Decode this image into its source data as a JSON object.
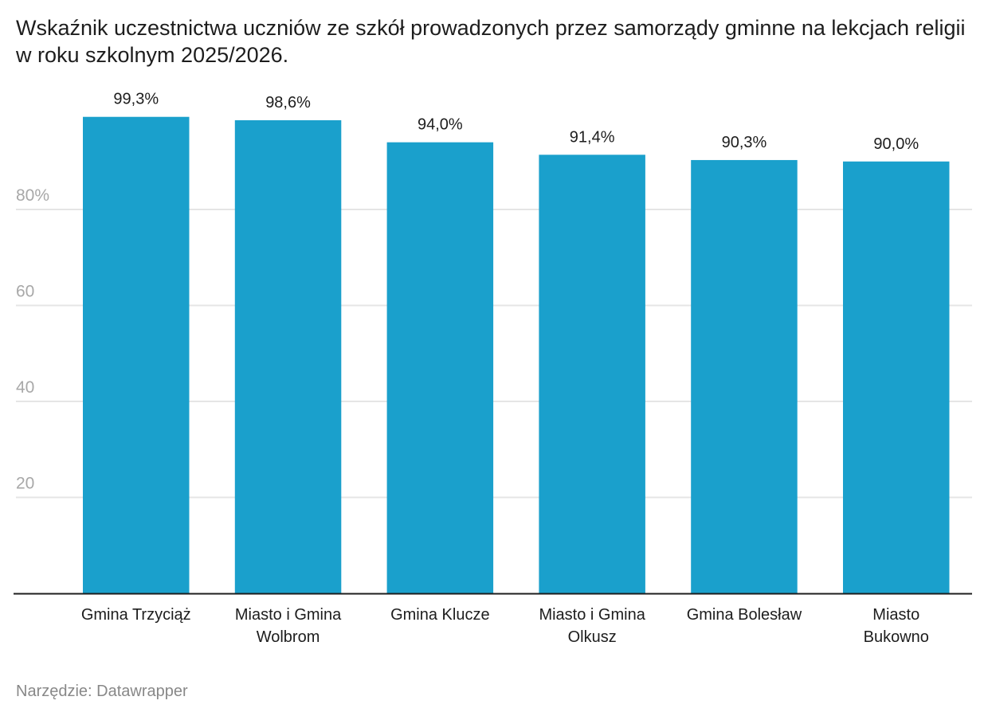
{
  "title": "Wskaźnik uczestnictwa uczniów ze szkół prowadzonych przez samorządy gminne na lekcjach religii w roku szkolnym 2025/2026.",
  "source": "Narzędzie: Datawrapper",
  "chart_data": {
    "type": "bar",
    "title": "Wskaźnik uczestnictwa uczniów ze szkół prowadzonych przez samorządy gminne na lekcjach religii w roku szkolnym 2025/2026.",
    "xlabel": "",
    "ylabel": "",
    "ylim": [
      0,
      100
    ],
    "grid": true,
    "bar_color": "#1aa0cc",
    "categories": [
      [
        "Gmina Trzyciąż"
      ],
      [
        "Miasto i Gmina",
        "Wolbrom"
      ],
      [
        "Gmina Klucze"
      ],
      [
        "Miasto i Gmina",
        "Olkusz"
      ],
      [
        "Gmina Bolesław"
      ],
      [
        "Miasto",
        "Bukowno"
      ]
    ],
    "values": [
      99.3,
      98.6,
      94.0,
      91.4,
      90.3,
      90.0
    ],
    "value_labels": [
      "99,3%",
      "98,6%",
      "94,0%",
      "91,4%",
      "90,3%",
      "90,0%"
    ],
    "yticks": [
      {
        "value": 20,
        "label": "20"
      },
      {
        "value": 40,
        "label": "40"
      },
      {
        "value": 60,
        "label": "60"
      },
      {
        "value": 80,
        "label": "80%"
      }
    ]
  }
}
